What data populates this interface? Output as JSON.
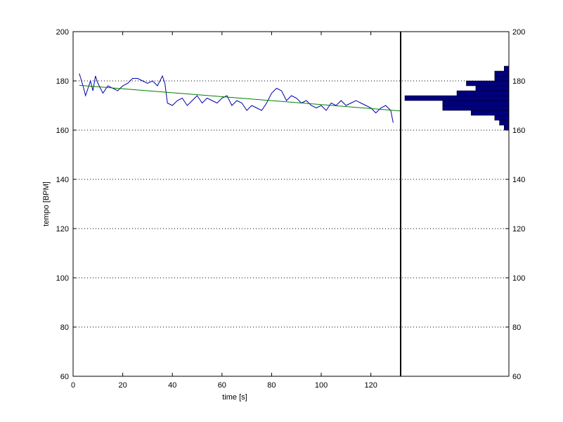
{
  "chart_data": {
    "type": "line",
    "xlabel": "time [s]",
    "ylabel": "tempo [BPM]",
    "xlim": [
      0,
      132
    ],
    "ylim": [
      60,
      200
    ],
    "x_ticks": [
      0,
      20,
      40,
      60,
      80,
      100,
      120
    ],
    "y_ticks": [
      60,
      80,
      100,
      120,
      140,
      160,
      180,
      200
    ],
    "y_grid": true,
    "series": [
      {
        "style": "tempo-curve",
        "color": "#0000aa",
        "x": [
          2.5,
          4,
          5,
          6,
          7,
          8,
          9,
          10,
          12,
          14,
          16,
          18,
          20,
          22,
          24,
          26,
          28,
          30,
          32,
          34,
          36,
          37,
          38,
          40,
          42,
          44,
          46,
          48,
          50,
          52,
          54,
          56,
          58,
          60,
          62,
          64,
          66,
          68,
          70,
          72,
          74,
          76,
          78,
          80,
          82,
          84,
          86,
          88,
          90,
          92,
          94,
          96,
          98,
          100,
          102,
          104,
          106,
          108,
          110,
          112,
          114,
          116,
          118,
          120,
          122,
          124,
          126,
          128,
          129
        ],
        "y": [
          183,
          178,
          174,
          177,
          180,
          176,
          182,
          179,
          175,
          178,
          177,
          176,
          178,
          179,
          181,
          181,
          180,
          179,
          180,
          178,
          182,
          179,
          171,
          170,
          172,
          173,
          170,
          172,
          174,
          171,
          173,
          172,
          171,
          173,
          174,
          170,
          172,
          171,
          168,
          170,
          169,
          168,
          171,
          175,
          177,
          176,
          172,
          174,
          173,
          171,
          172,
          170,
          169,
          170,
          168,
          171,
          170,
          172,
          170,
          171,
          172,
          171,
          170,
          169,
          167,
          169,
          170,
          168,
          163
        ]
      },
      {
        "style": "linear-fit",
        "color": "#008000",
        "x": [
          2.5,
          132
        ],
        "y": [
          178.2,
          167.8
        ]
      }
    ]
  },
  "histogram": {
    "color": "#00007f",
    "ylim": [
      60,
      200
    ],
    "y_ticks": [
      60,
      80,
      100,
      120,
      140,
      160,
      180,
      200
    ],
    "bins": [
      {
        "y": 161,
        "count": 1
      },
      {
        "y": 163,
        "count": 2
      },
      {
        "y": 165,
        "count": 3
      },
      {
        "y": 167,
        "count": 8
      },
      {
        "y": 169,
        "count": 14
      },
      {
        "y": 171,
        "count": 14
      },
      {
        "y": 173,
        "count": 22
      },
      {
        "y": 175,
        "count": 11
      },
      {
        "y": 177,
        "count": 7
      },
      {
        "y": 179,
        "count": 9
      },
      {
        "y": 181,
        "count": 3
      },
      {
        "y": 183,
        "count": 3
      },
      {
        "y": 185,
        "count": 1
      }
    ],
    "max_count": 22
  }
}
